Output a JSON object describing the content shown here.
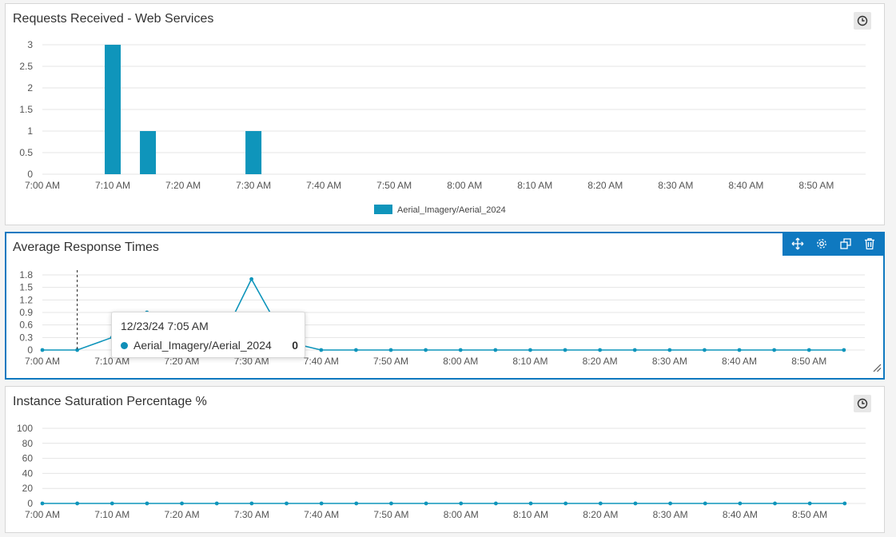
{
  "colors": {
    "series": "#0f95bb",
    "grid": "#e4e4e4",
    "accent": "#0f79c0"
  },
  "panels": {
    "requests": {
      "title": "Requests Received - Web Services",
      "history_icon": "clock-icon"
    },
    "response": {
      "title": "Average Response Times",
      "tools": [
        "move-icon",
        "gear-icon",
        "expand-icon",
        "trash-icon"
      ]
    },
    "saturation": {
      "title": "Instance Saturation Percentage %",
      "history_icon": "clock-icon"
    }
  },
  "tooltip": {
    "date": "12/23/24 7:05 AM",
    "series": "Aerial_Imagery/Aerial_2024",
    "value": "0"
  },
  "chart_data": [
    {
      "type": "bar",
      "title": "Requests Received - Web Services",
      "x_ticks": [
        "7:00 AM",
        "7:10 AM",
        "7:20 AM",
        "7:30 AM",
        "7:40 AM",
        "7:50 AM",
        "8:00 AM",
        "8:10 AM",
        "8:20 AM",
        "8:30 AM",
        "8:40 AM",
        "8:50 AM"
      ],
      "y_ticks": [
        "3",
        "2.5",
        "2",
        "1.5",
        "1",
        "0.5",
        "0"
      ],
      "ylim": [
        0,
        3
      ],
      "x": [
        "7:10 AM",
        "7:15 AM",
        "7:30 AM"
      ],
      "series": [
        {
          "name": "Aerial_Imagery/Aerial_2024",
          "values": [
            3,
            1,
            1
          ]
        }
      ],
      "legend": "bottom-center",
      "grid": true
    },
    {
      "type": "line",
      "title": "Average Response Times",
      "x_ticks": [
        "7:00 AM",
        "7:10 AM",
        "7:20 AM",
        "7:30 AM",
        "7:40 AM",
        "7:50 AM",
        "8:00 AM",
        "8:10 AM",
        "8:20 AM",
        "8:30 AM",
        "8:40 AM",
        "8:50 AM"
      ],
      "y_ticks": [
        "1.8",
        "1.5",
        "1.2",
        "0.9",
        "0.6",
        "0.3",
        "0"
      ],
      "ylim": [
        0,
        1.8
      ],
      "x": [
        "7:00 AM",
        "7:05 AM",
        "7:10 AM",
        "7:15 AM",
        "7:20 AM",
        "7:25 AM",
        "7:30 AM",
        "7:35 AM",
        "7:40 AM",
        "7:45 AM",
        "7:50 AM",
        "7:55 AM",
        "8:00 AM",
        "8:05 AM",
        "8:10 AM",
        "8:15 AM",
        "8:20 AM",
        "8:25 AM",
        "8:30 AM",
        "8:35 AM",
        "8:40 AM",
        "8:45 AM",
        "8:50 AM",
        "8:55 AM"
      ],
      "series": [
        {
          "name": "Aerial_Imagery/Aerial_2024",
          "values": [
            0,
            0,
            0.3,
            0.9,
            0.35,
            0,
            1.7,
            0.2,
            0,
            0,
            0,
            0,
            0,
            0,
            0,
            0,
            0,
            0,
            0,
            0,
            0,
            0,
            0,
            0
          ]
        }
      ],
      "grid": true
    },
    {
      "type": "line",
      "title": "Instance Saturation Percentage %",
      "x_ticks": [
        "7:00 AM",
        "7:10 AM",
        "7:20 AM",
        "7:30 AM",
        "7:40 AM",
        "7:50 AM",
        "8:00 AM",
        "8:10 AM",
        "8:20 AM",
        "8:30 AM",
        "8:40 AM",
        "8:50 AM"
      ],
      "y_ticks": [
        "100",
        "80",
        "60",
        "40",
        "20",
        "0"
      ],
      "ylim": [
        0,
        100
      ],
      "x": [
        "7:00 AM",
        "7:05 AM",
        "7:10 AM",
        "7:15 AM",
        "7:20 AM",
        "7:25 AM",
        "7:30 AM",
        "7:35 AM",
        "7:40 AM",
        "7:45 AM",
        "7:50 AM",
        "7:55 AM",
        "8:00 AM",
        "8:05 AM",
        "8:10 AM",
        "8:15 AM",
        "8:20 AM",
        "8:25 AM",
        "8:30 AM",
        "8:35 AM",
        "8:40 AM",
        "8:45 AM",
        "8:50 AM",
        "8:55 AM"
      ],
      "series": [
        {
          "name": "Aerial_Imagery/Aerial_2024",
          "values": [
            0,
            0,
            0,
            0,
            0,
            0,
            0,
            0,
            0,
            0,
            0,
            0,
            0,
            0,
            0,
            0,
            0,
            0,
            0,
            0,
            0,
            0,
            0,
            0
          ]
        }
      ],
      "grid": true
    }
  ]
}
